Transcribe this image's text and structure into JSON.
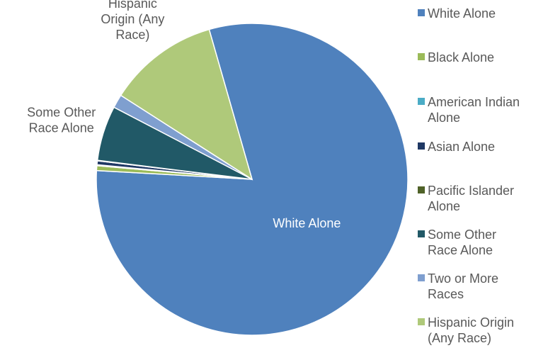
{
  "chart_data": {
    "type": "pie",
    "categories": [
      "White Alone",
      "Black Alone",
      "American Indian Alone",
      "Asian Alone",
      "Pacific Islander Alone",
      "Some Other Race Alone",
      "Two or More Races",
      "Hispanic Origin (Any Race)"
    ],
    "values": [
      80.3,
      0.5,
      0.1,
      0.4,
      0.05,
      5.7,
      1.4,
      11.5
    ],
    "colors": [
      "#4f81bd",
      "#9bbb59",
      "#4bacc6",
      "#1f3864",
      "#4f6228",
      "#215967",
      "#7f9fcf",
      "#afc97a"
    ],
    "data_labels": [
      {
        "index": 0,
        "text": "White Alone"
      },
      {
        "index": 5,
        "lines": [
          "Some Other",
          "Race Alone"
        ]
      },
      {
        "index": 7,
        "lines": [
          "Hispanic",
          "Origin (Any",
          "Race)"
        ]
      }
    ],
    "legend": {
      "position": "right",
      "items": [
        {
          "lines": [
            "White Alone"
          ]
        },
        {
          "lines": [
            "Black Alone"
          ]
        },
        {
          "lines": [
            "American Indian",
            "Alone"
          ]
        },
        {
          "lines": [
            "Asian Alone"
          ]
        },
        {
          "lines": [
            "Pacific Islander",
            "Alone"
          ]
        },
        {
          "lines": [
            "Some Other",
            "Race Alone"
          ]
        },
        {
          "lines": [
            "Two or More",
            "Races"
          ]
        },
        {
          "lines": [
            "Hispanic Origin",
            "(Any Race)"
          ]
        }
      ]
    }
  }
}
